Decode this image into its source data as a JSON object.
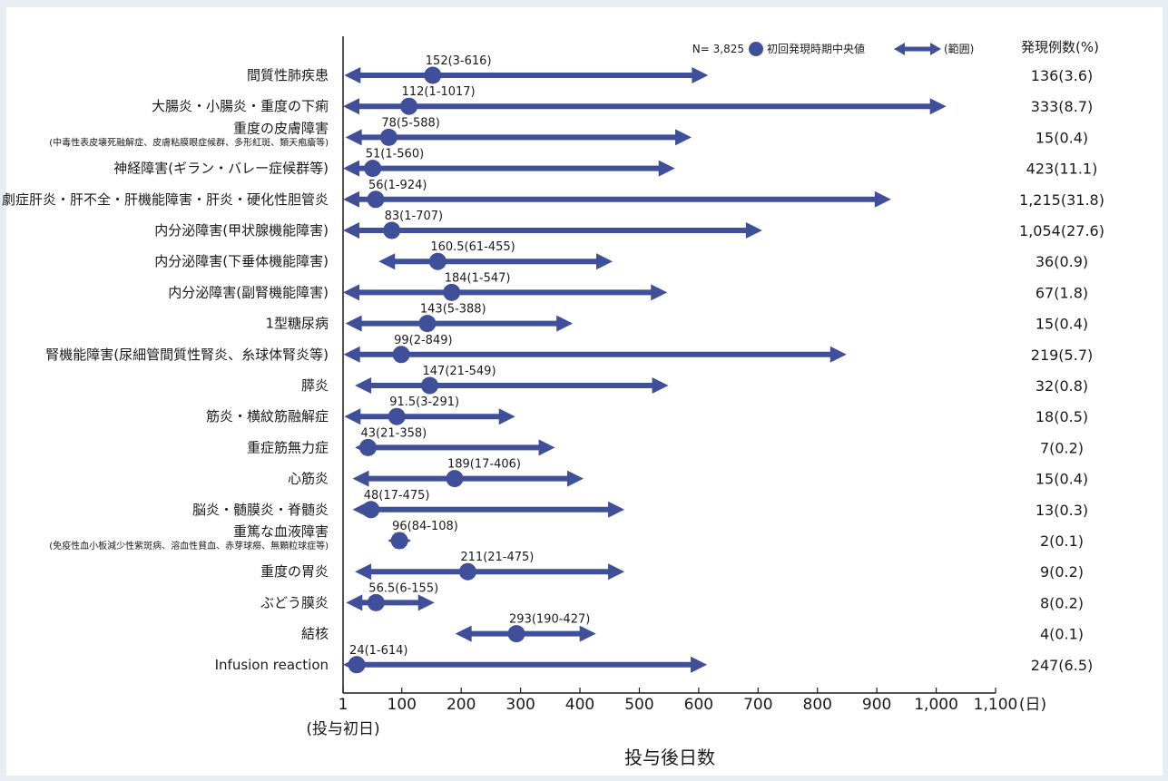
{
  "chart_data": {
    "type": "range",
    "xlabel": "投与後日数",
    "x_unit": "(日)",
    "x_start_note": "(投与初日)",
    "xlim": [
      1,
      1100
    ],
    "xticks": [
      {
        "v": 1,
        "label": "1"
      },
      {
        "v": 100,
        "label": "100"
      },
      {
        "v": 200,
        "label": "200"
      },
      {
        "v": 300,
        "label": "300"
      },
      {
        "v": 400,
        "label": "400"
      },
      {
        "v": 500,
        "label": "500"
      },
      {
        "v": 600,
        "label": "600"
      },
      {
        "v": 700,
        "label": "700"
      },
      {
        "v": 800,
        "label": "800"
      },
      {
        "v": 900,
        "label": "900"
      },
      {
        "v": 1000,
        "label": "1,000"
      },
      {
        "v": 1100,
        "label": "1,100"
      }
    ],
    "legend": {
      "n": "N= 3,825",
      "median": "初回発現時期中央値",
      "range": "(範囲)"
    },
    "count_header": "発現例数(%)",
    "rows": [
      {
        "cat": "間質性肺疾患",
        "median": 152,
        "min": 3,
        "max": 616,
        "label": "152(3-616)",
        "count": "136(3.6)"
      },
      {
        "cat": "大腸炎・小腸炎・重度の下痢",
        "median": 112,
        "min": 1,
        "max": 1017,
        "label": "112(1-1017)",
        "count": "333(8.7)"
      },
      {
        "cat": "重度の皮膚障害",
        "sub": "(中毒性表皮壊死融解症、皮膚粘膜眼症候群、多形紅斑、類天疱瘡等)",
        "median": 78,
        "min": 5,
        "max": 588,
        "label": "78(5-588)",
        "count": "15(0.4)"
      },
      {
        "cat": "神経障害(ギラン・バレー症候群等)",
        "median": 51,
        "min": 1,
        "max": 560,
        "label": "51(1-560)",
        "count": "423(11.1)"
      },
      {
        "cat": "劇症肝炎・肝不全・肝機能障害・肝炎・硬化性胆管炎",
        "median": 56,
        "min": 1,
        "max": 924,
        "label": "56(1-924)",
        "count": "1,215(31.8)"
      },
      {
        "cat": "内分泌障害(甲状腺機能障害)",
        "median": 83,
        "min": 1,
        "max": 707,
        "label": "83(1-707)",
        "count": "1,054(27.6)"
      },
      {
        "cat": "内分泌障害(下垂体機能障害)",
        "median": 160.5,
        "min": 61,
        "max": 455,
        "label": "160.5(61-455)",
        "count": "36(0.9)"
      },
      {
        "cat": "内分泌障害(副腎機能障害)",
        "median": 184,
        "min": 1,
        "max": 547,
        "label": "184(1-547)",
        "count": "67(1.8)"
      },
      {
        "cat": "1型糖尿病",
        "median": 143,
        "min": 5,
        "max": 388,
        "label": "143(5-388)",
        "count": "15(0.4)"
      },
      {
        "cat": "腎機能障害(尿細管間質性腎炎、糸球体腎炎等)",
        "median": 99,
        "min": 2,
        "max": 849,
        "label": "99(2-849)",
        "count": "219(5.7)"
      },
      {
        "cat": "膵炎",
        "median": 147,
        "min": 21,
        "max": 549,
        "label": "147(21-549)",
        "count": "32(0.8)"
      },
      {
        "cat": "筋炎・横紋筋融解症",
        "median": 91.5,
        "min": 3,
        "max": 291,
        "label": "91.5(3-291)",
        "count": "18(0.5)"
      },
      {
        "cat": "重症筋無力症",
        "median": 43,
        "min": 21,
        "max": 358,
        "label": "43(21-358)",
        "count": "7(0.2)"
      },
      {
        "cat": "心筋炎",
        "median": 189,
        "min": 17,
        "max": 406,
        "label": "189(17-406)",
        "count": "15(0.4)"
      },
      {
        "cat": "脳炎・髄膜炎・脊髄炎",
        "median": 48,
        "min": 17,
        "max": 475,
        "label": "48(17-475)",
        "count": "13(0.3)"
      },
      {
        "cat": "重篤な血液障害",
        "sub": "(免疫性血小板減少性紫斑病、溶血性貧血、赤芽球癆、無顆粒球症等)",
        "median": 96,
        "min": 84,
        "max": 108,
        "label": "96(84-108)",
        "count": "2(0.1)"
      },
      {
        "cat": "重度の胃炎",
        "median": 211,
        "min": 21,
        "max": 475,
        "label": "211(21-475)",
        "count": "9(0.2)"
      },
      {
        "cat": "ぶどう膜炎",
        "median": 56.5,
        "min": 6,
        "max": 155,
        "label": "56.5(6-155)",
        "count": "8(0.2)"
      },
      {
        "cat": "結核",
        "median": 293,
        "min": 190,
        "max": 427,
        "label": "293(190-427)",
        "count": "4(0.1)"
      },
      {
        "cat": "Infusion reaction",
        "median": 24,
        "min": 1,
        "max": 614,
        "label": "24(1-614)",
        "count": "247(6.5)"
      }
    ],
    "colors": {
      "arrow": "#3f4f99",
      "marker": "#3f4f99",
      "panel": "#ffffff",
      "background": "#e8ecf3"
    }
  }
}
